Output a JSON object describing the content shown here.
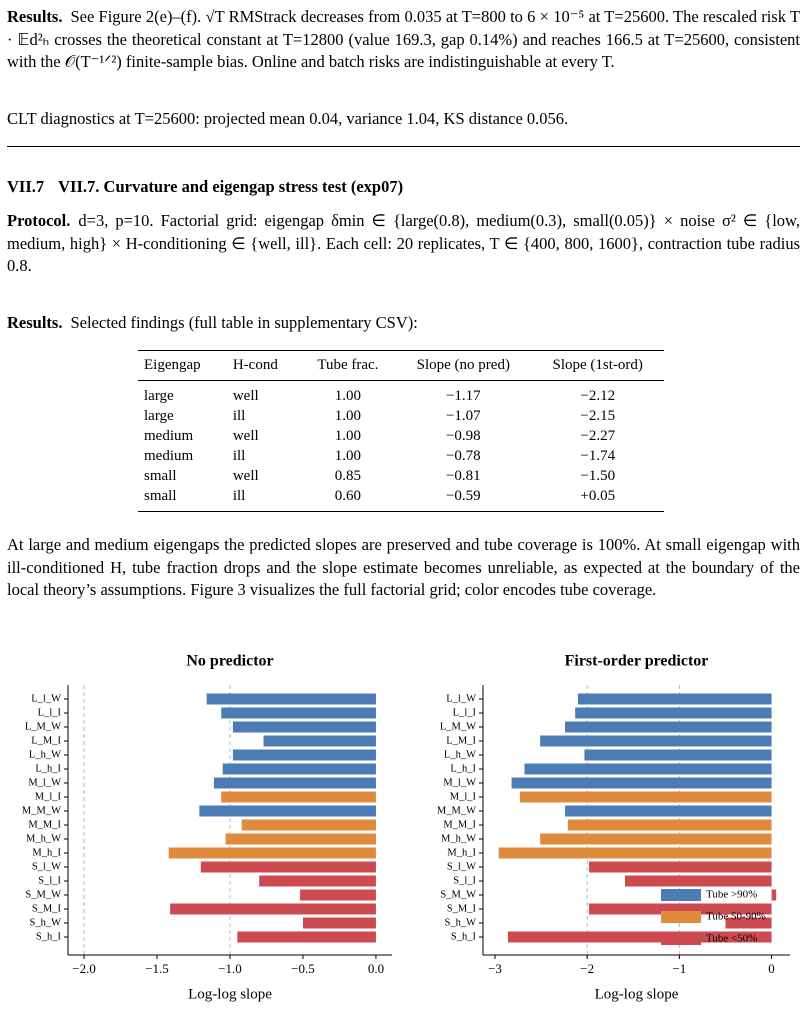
{
  "results1": {
    "label": "Results.",
    "text": "See Figure 2(e)–(f). √T RMStrack decreases from 0.035 at T=800 to 6 × 10⁻⁵ at T=25600. The rescaled risk T · 𝔼d²ₕ crosses the theoretical constant at T=12800 (value 169.3, gap 0.14%) and reaches 166.5 at T=25600, consistent with the 𝒪(T⁻¹ᐟ²) finite-sample bias. Online and batch risks are indistinguishable at every T."
  },
  "clt": "CLT diagnostics at T=25600: projected mean 0.04, variance 1.04, KS distance 0.056.",
  "section": {
    "number": "VII.7",
    "title": "VII.7. Curvature and eigengap stress test (exp07)"
  },
  "protocol": {
    "label": "Protocol.",
    "text": "d=3, p=10. Factorial grid: eigengap δmin ∈ {large(0.8), medium(0.3), small(0.05)} × noise σ² ∈ {low, medium, high} × H-conditioning ∈ {well, ill}. Each cell: 20 replicates, T ∈ {400, 800, 1600}, contraction tube radius 0.8."
  },
  "results2": {
    "label": "Results.",
    "text": "Selected findings (full table in supplementary CSV):"
  },
  "table": {
    "header": [
      "Eigengap",
      "H-cond",
      "Tube frac.",
      "Slope (no pred)",
      "Slope (1st-ord)"
    ],
    "rows": [
      [
        "large",
        "well",
        "1.00",
        "−1.17",
        "−2.12"
      ],
      [
        "large",
        "ill",
        "1.00",
        "−1.07",
        "−2.15"
      ],
      [
        "medium",
        "well",
        "1.00",
        "−0.98",
        "−2.27"
      ],
      [
        "medium",
        "ill",
        "1.00",
        "−0.78",
        "−1.74"
      ],
      [
        "small",
        "well",
        "0.85",
        "−0.81",
        "−1.50"
      ],
      [
        "small",
        "ill",
        "0.60",
        "−0.59",
        "+0.05"
      ]
    ]
  },
  "discussion": "At large and medium eigengaps the predicted slopes are preserved and tube coverage is 100%. At small eigengap with ill-conditioned H, tube fraction drops and the slope estimate becomes unreliable, as expected at the boundary of the local theory’s assumptions. Figure 3 visualizes the full factorial grid; color encodes tube coverage.",
  "chart_data": [
    {
      "type": "hbar",
      "title": "No predictor",
      "x_label": "Log-log slope",
      "categories": [
        "L_l_W",
        "L_l_I",
        "L_M_W",
        "L_M_I",
        "L_h_W",
        "L_h_I",
        "M_l_W",
        "M_l_I",
        "M_M_W",
        "M_M_I",
        "M_h_W",
        "M_h_I",
        "S_l_W",
        "S_l_I",
        "S_M_W",
        "S_M_I",
        "S_h_W",
        "S_h_I"
      ],
      "values": [
        -1.16,
        -1.06,
        -0.98,
        -0.77,
        -0.98,
        -1.05,
        -1.11,
        -1.06,
        -1.21,
        -0.92,
        -1.03,
        -1.42,
        -1.2,
        -0.8,
        -0.52,
        -1.41,
        -0.5,
        -0.95
      ],
      "colors": [
        "#4c7bb5",
        "#4c7bb5",
        "#4c7bb5",
        "#4c7bb5",
        "#4c7bb5",
        "#4c7bb5",
        "#4c7bb5",
        "#e08a3c",
        "#4c7bb5",
        "#e08a3c",
        "#e08a3c",
        "#e08a3c",
        "#cc4a50",
        "#cc4a50",
        "#cc4a50",
        "#cc4a50",
        "#cc4a50",
        "#cc4a50"
      ],
      "xlim": [
        -2.11,
        0.11
      ],
      "xticks": [
        {
          "value": -2,
          "label": "−2.0"
        },
        {
          "value": -1.5,
          "label": "−1.5"
        },
        {
          "value": -1,
          "label": "−1.0"
        },
        {
          "value": -0.5,
          "label": "−0.5"
        },
        {
          "value": 0,
          "label": "0.0"
        }
      ],
      "ref_lines": [
        -2,
        -1
      ]
    },
    {
      "type": "hbar",
      "title": "First-order predictor",
      "x_label": "Log-log slope",
      "categories": [
        "L_l_W",
        "L_l_I",
        "L_M_W",
        "L_M_I",
        "L_h_W",
        "L_h_I",
        "M_l_W",
        "M_l_I",
        "M_M_W",
        "M_M_I",
        "M_h_W",
        "M_h_I",
        "S_l_W",
        "S_l_I",
        "S_M_W",
        "S_M_I",
        "S_h_W",
        "S_h_I"
      ],
      "values": [
        -2.1,
        -2.13,
        -2.24,
        -2.51,
        -2.03,
        -2.68,
        -2.82,
        -2.73,
        -2.24,
        -2.21,
        -2.51,
        -2.96,
        -1.98,
        -1.59,
        0.05,
        -1.98,
        -0.5,
        -2.86
      ],
      "colors": [
        "#4c7bb5",
        "#4c7bb5",
        "#4c7bb5",
        "#4c7bb5",
        "#4c7bb5",
        "#4c7bb5",
        "#4c7bb5",
        "#e08a3c",
        "#4c7bb5",
        "#e08a3c",
        "#e08a3c",
        "#e08a3c",
        "#cc4a50",
        "#cc4a50",
        "#cc4a50",
        "#cc4a50",
        "#cc4a50",
        "#cc4a50"
      ],
      "xlim": [
        -3.13,
        0.2
      ],
      "xticks": [
        {
          "value": -3,
          "label": "−3"
        },
        {
          "value": -2,
          "label": "−2"
        },
        {
          "value": -1,
          "label": "−1"
        },
        0
      ],
      "ref_lines": [
        -2,
        -1
      ],
      "legend": [
        {
          "label": "Tube >90%",
          "color": "#4c7bb5"
        },
        {
          "label": "Tube 50-90%",
          "color": "#e08a3c"
        },
        {
          "label": "Tube <50%",
          "color": "#cc4a50"
        }
      ],
      "legend_loc": "lower right"
    }
  ]
}
